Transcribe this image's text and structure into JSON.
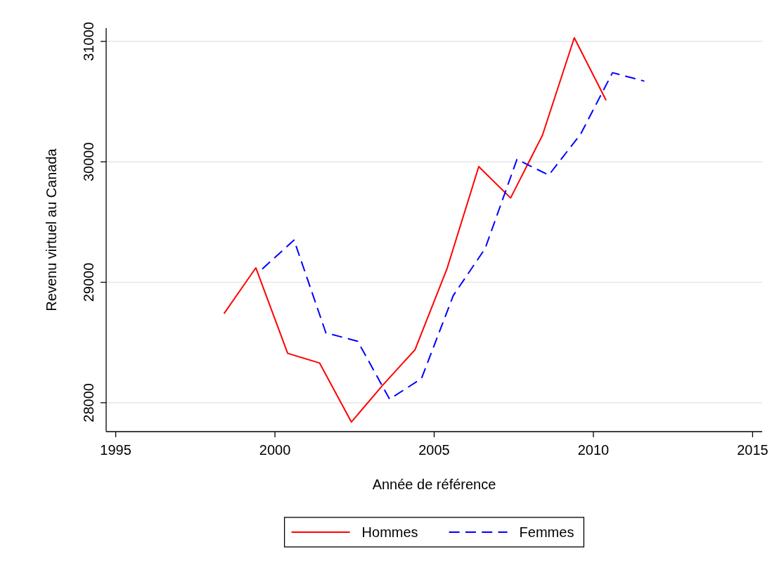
{
  "chart_data": {
    "type": "line",
    "xlabel": "Année de référence",
    "ylabel": "Revenu virtuel au Canada",
    "xlim": [
      1994.7,
      2015.3
    ],
    "ylim": [
      27760,
      31110
    ],
    "xticks": [
      1995,
      2000,
      2005,
      2010,
      2015
    ],
    "yticks": [
      28000,
      29000,
      30000,
      31000
    ],
    "grid": "y",
    "legend": "bottom",
    "series": [
      {
        "name": "Hommes",
        "color": "#ff0000",
        "line_style": "solid",
        "x": [
          1998.4,
          1999.4,
          2000.4,
          2001.4,
          2002.4,
          2003.4,
          2004.4,
          2005.4,
          2006.4,
          2007.4,
          2008.4,
          2009.4,
          2010.4
        ],
        "values": [
          28740,
          29120,
          28410,
          28330,
          27840,
          28150,
          28440,
          29110,
          29960,
          29700,
          30220,
          31030,
          30510
        ]
      },
      {
        "name": "Femmes",
        "color": "#0000ff",
        "line_style": "dashed",
        "x": [
          1999.6,
          2000.6,
          2001.6,
          2002.6,
          2003.6,
          2004.6,
          2005.6,
          2006.6,
          2007.6,
          2008.6,
          2009.6,
          2010.6,
          2011.6
        ],
        "values": [
          29110,
          29350,
          28580,
          28510,
          28030,
          28200,
          28890,
          29280,
          30020,
          29890,
          30230,
          30740,
          30670
        ]
      }
    ]
  }
}
